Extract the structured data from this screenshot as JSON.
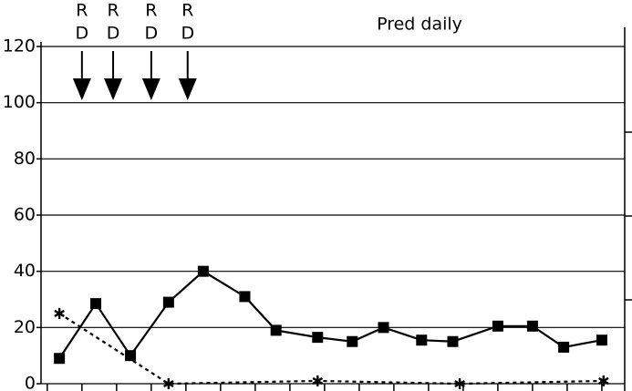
{
  "chart_data": {
    "type": "line",
    "annotations": [
      {
        "x": 1,
        "lines": [
          "R",
          "D"
        ]
      },
      {
        "x": 1.9,
        "lines": [
          "R",
          "D"
        ]
      },
      {
        "x": 3,
        "lines": [
          "R",
          "D"
        ]
      },
      {
        "x": 4.05,
        "lines": [
          "R",
          "D"
        ]
      }
    ],
    "note": "Pred daily",
    "series": [
      {
        "style": "solid",
        "marker": "square",
        "color": "#000000",
        "x": [
          0.35,
          1.4,
          2.4,
          3.5,
          4.5,
          5.7,
          6.6,
          7.8,
          8.8,
          9.7,
          10.8,
          11.7,
          13,
          14,
          14.9,
          16
        ],
        "values": [
          9,
          28.5,
          10,
          29,
          40,
          31,
          19,
          16.5,
          15,
          20,
          15.5,
          15,
          20.5,
          20.5,
          13,
          15.5
        ]
      },
      {
        "style": "dotted",
        "marker": "star",
        "color": "#000000",
        "x": [
          0.35,
          3.5,
          7.8,
          11.9,
          16.05
        ],
        "values": [
          25,
          0,
          1,
          0,
          1
        ]
      }
    ],
    "xlim": [
      -0.18,
      16.66
    ],
    "xticks": [
      0,
      1,
      2,
      3,
      4,
      5,
      6,
      7,
      8,
      9,
      10,
      11,
      12,
      13,
      14,
      15,
      16
    ],
    "ylim": [
      0,
      120
    ],
    "yticks": [
      0,
      20,
      40,
      60,
      80,
      100,
      120
    ],
    "grid": true
  }
}
